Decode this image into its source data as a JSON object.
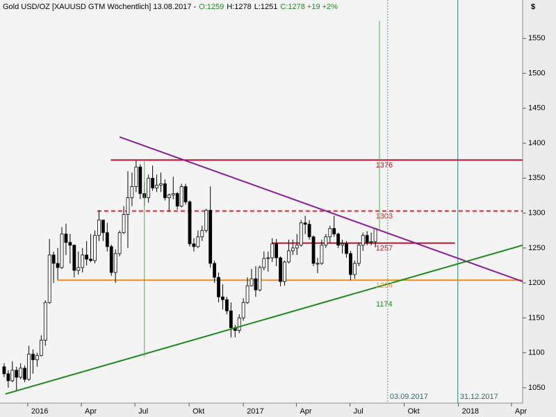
{
  "chart_data": {
    "type": "candlestick",
    "header": [
      {
        "text": "Gold USD/OZ [XAUUSD GTM  Wöchentlich] 13.08.2017 -",
        "color": "#000000"
      },
      {
        "text": "O:1259",
        "color": "#1a8a1a"
      },
      {
        "text": "H:1278",
        "color": "#000000"
      },
      {
        "text": "L:1251",
        "color": "#000000"
      },
      {
        "text": "C:1278 +19 +2%",
        "color": "#1a8a1a"
      }
    ],
    "y_unit": "$",
    "xlim": [
      "2015-11-15",
      "2018-04-20"
    ],
    "ylim": [
      1028,
      1605
    ],
    "yticks": [
      1050,
      1100,
      1150,
      1200,
      1250,
      1300,
      1350,
      1400,
      1450,
      1500,
      1550
    ],
    "xticks": [
      {
        "value": "2016-01-01",
        "label": "2016"
      },
      {
        "value": "2016-04-01",
        "label": "Apr"
      },
      {
        "value": "2016-07-01",
        "label": "Jul"
      },
      {
        "value": "2016-10-01",
        "label": "Okt"
      },
      {
        "value": "2017-01-01",
        "label": "2017"
      },
      {
        "value": "2017-04-01",
        "label": "Apr"
      },
      {
        "value": "2017-07-01",
        "label": "Jul"
      },
      {
        "value": "2017-10-01",
        "label": "Okt"
      },
      {
        "value": "2018-01-01",
        "label": "2018"
      },
      {
        "value": "2018-04-01",
        "label": "Apr"
      }
    ],
    "x": [
      "2015-11-22",
      "2015-11-29",
      "2015-12-06",
      "2015-12-13",
      "2015-12-20",
      "2015-12-27",
      "2016-01-03",
      "2016-01-10",
      "2016-01-17",
      "2016-01-24",
      "2016-01-31",
      "2016-02-07",
      "2016-02-14",
      "2016-02-21",
      "2016-02-28",
      "2016-03-06",
      "2016-03-13",
      "2016-03-20",
      "2016-03-27",
      "2016-04-03",
      "2016-04-10",
      "2016-04-17",
      "2016-04-24",
      "2016-05-01",
      "2016-05-08",
      "2016-05-15",
      "2016-05-22",
      "2016-05-29",
      "2016-06-05",
      "2016-06-12",
      "2016-06-19",
      "2016-06-26",
      "2016-07-03",
      "2016-07-10",
      "2016-07-17",
      "2016-07-24",
      "2016-07-31",
      "2016-08-07",
      "2016-08-14",
      "2016-08-21",
      "2016-08-28",
      "2016-09-04",
      "2016-09-11",
      "2016-09-18",
      "2016-09-25",
      "2016-10-02",
      "2016-10-09",
      "2016-10-16",
      "2016-10-23",
      "2016-10-30",
      "2016-11-06",
      "2016-11-13",
      "2016-11-20",
      "2016-11-27",
      "2016-12-04",
      "2016-12-11",
      "2016-12-18",
      "2016-12-25",
      "2017-01-01",
      "2017-01-08",
      "2017-01-15",
      "2017-01-22",
      "2017-01-29",
      "2017-02-05",
      "2017-02-12",
      "2017-02-19",
      "2017-02-26",
      "2017-03-05",
      "2017-03-12",
      "2017-03-19",
      "2017-03-26",
      "2017-04-02",
      "2017-04-09",
      "2017-04-16",
      "2017-04-23",
      "2017-04-30",
      "2017-05-07",
      "2017-05-14",
      "2017-05-21",
      "2017-05-28",
      "2017-06-04",
      "2017-06-11",
      "2017-06-18",
      "2017-06-25",
      "2017-07-02",
      "2017-07-09",
      "2017-07-16",
      "2017-07-23",
      "2017-07-30",
      "2017-08-06",
      "2017-08-13"
    ],
    "open": [
      1080,
      1070,
      1060,
      1075,
      1065,
      1078,
      1062,
      1098,
      1090,
      1096,
      1118,
      1172,
      1240,
      1228,
      1222,
      1270,
      1258,
      1254,
      1218,
      1222,
      1240,
      1234,
      1232,
      1268,
      1290,
      1272,
      1252,
      1215,
      1242,
      1272,
      1298,
      1322,
      1338,
      1366,
      1328,
      1322,
      1350,
      1336,
      1340,
      1342,
      1322,
      1326,
      1328,
      1310,
      1338,
      1316,
      1256,
      1252,
      1266,
      1275,
      1304,
      1228,
      1208,
      1180,
      1176,
      1160,
      1136,
      1132,
      1150,
      1172,
      1196,
      1206,
      1190,
      1222,
      1235,
      1236,
      1256,
      1236,
      1202,
      1230,
      1246,
      1250,
      1254,
      1286,
      1284,
      1266,
      1228,
      1228,
      1254,
      1266,
      1278,
      1270,
      1254,
      1256,
      1242,
      1212,
      1228,
      1254,
      1268,
      1258,
      1259
    ],
    "high": [
      1085,
      1075,
      1088,
      1080,
      1085,
      1082,
      1110,
      1105,
      1100,
      1125,
      1175,
      1263,
      1245,
      1250,
      1280,
      1285,
      1270,
      1255,
      1245,
      1250,
      1260,
      1270,
      1275,
      1304,
      1290,
      1286,
      1255,
      1248,
      1275,
      1310,
      1360,
      1358,
      1375,
      1370,
      1345,
      1355,
      1368,
      1355,
      1358,
      1348,
      1328,
      1352,
      1330,
      1342,
      1342,
      1318,
      1264,
      1275,
      1282,
      1306,
      1338,
      1232,
      1215,
      1198,
      1180,
      1172,
      1140,
      1155,
      1178,
      1208,
      1220,
      1224,
      1225,
      1245,
      1245,
      1264,
      1263,
      1238,
      1232,
      1262,
      1262,
      1270,
      1290,
      1296,
      1290,
      1268,
      1236,
      1262,
      1270,
      1282,
      1296,
      1272,
      1262,
      1260,
      1246,
      1232,
      1258,
      1272,
      1274,
      1272,
      1278
    ],
    "low": [
      1065,
      1050,
      1058,
      1046,
      1062,
      1058,
      1060,
      1070,
      1080,
      1095,
      1110,
      1170,
      1200,
      1205,
      1220,
      1240,
      1228,
      1208,
      1212,
      1215,
      1225,
      1230,
      1228,
      1260,
      1260,
      1245,
      1210,
      1200,
      1238,
      1270,
      1250,
      1310,
      1330,
      1320,
      1310,
      1315,
      1332,
      1330,
      1330,
      1318,
      1302,
      1320,
      1305,
      1308,
      1312,
      1252,
      1245,
      1250,
      1260,
      1272,
      1222,
      1200,
      1172,
      1162,
      1155,
      1122,
      1122,
      1128,
      1146,
      1170,
      1195,
      1180,
      1188,
      1218,
      1216,
      1230,
      1224,
      1195,
      1196,
      1228,
      1240,
      1240,
      1252,
      1270,
      1262,
      1224,
      1214,
      1226,
      1250,
      1258,
      1266,
      1250,
      1242,
      1236,
      1204,
      1206,
      1224,
      1246,
      1254,
      1254,
      1251
    ],
    "close": [
      1070,
      1060,
      1075,
      1065,
      1078,
      1062,
      1098,
      1090,
      1096,
      1118,
      1172,
      1240,
      1228,
      1222,
      1270,
      1258,
      1254,
      1218,
      1222,
      1240,
      1234,
      1232,
      1268,
      1290,
      1272,
      1252,
      1215,
      1242,
      1272,
      1298,
      1322,
      1338,
      1366,
      1328,
      1322,
      1350,
      1336,
      1340,
      1342,
      1322,
      1326,
      1328,
      1310,
      1338,
      1316,
      1256,
      1252,
      1266,
      1275,
      1304,
      1228,
      1208,
      1180,
      1176,
      1160,
      1136,
      1132,
      1150,
      1172,
      1196,
      1206,
      1190,
      1222,
      1235,
      1236,
      1256,
      1236,
      1202,
      1230,
      1246,
      1250,
      1254,
      1286,
      1284,
      1266,
      1228,
      1228,
      1254,
      1266,
      1278,
      1270,
      1254,
      1256,
      1242,
      1212,
      1228,
      1254,
      1268,
      1258,
      1259,
      1278
    ],
    "levels": [
      {
        "value": 1376,
        "color": "#c8102e",
        "dashed": false,
        "from": "2016-05-21",
        "to": "2018-04-20"
      },
      {
        "value": 1303,
        "color": "#e0202a",
        "dashed": true,
        "from": "2016-04-28",
        "to": "2018-04-20"
      },
      {
        "value": 1257,
        "color": "#c8102e",
        "dashed": false,
        "from": "2017-02-19",
        "to": "2017-12-26"
      },
      {
        "value": 1204,
        "color": "#f0901e",
        "dashed": false,
        "from": "2016-02-20",
        "to": "2018-04-20"
      }
    ],
    "trendlines": [
      {
        "color": "#8b1a9b",
        "x": [
          "2016-06-05",
          "2018-04-20"
        ],
        "y": [
          1409,
          1202
        ]
      },
      {
        "color": "#1a8a1a",
        "x": [
          "2015-11-24",
          "2018-04-20"
        ],
        "y": [
          1041,
          1254
        ],
        "label": 1174
      },
      {
        "color": "#3cc03c",
        "x": [
          "2016-07-17",
          "2016-07-17"
        ],
        "y": [
          1094,
          1376
        ]
      },
      {
        "color": "#3cc03c",
        "x": [
          "2017-08-20",
          "2017-08-20"
        ],
        "y": [
          1277,
          1575
        ]
      }
    ],
    "vlines": [
      {
        "x": "2017-09-03",
        "label": "03.09.2017",
        "color": "#5a9a8a",
        "dashed": true
      },
      {
        "x": "2017-12-31",
        "label": "31.12.2017",
        "color": "#2a8080",
        "dashed": false
      }
    ]
  }
}
